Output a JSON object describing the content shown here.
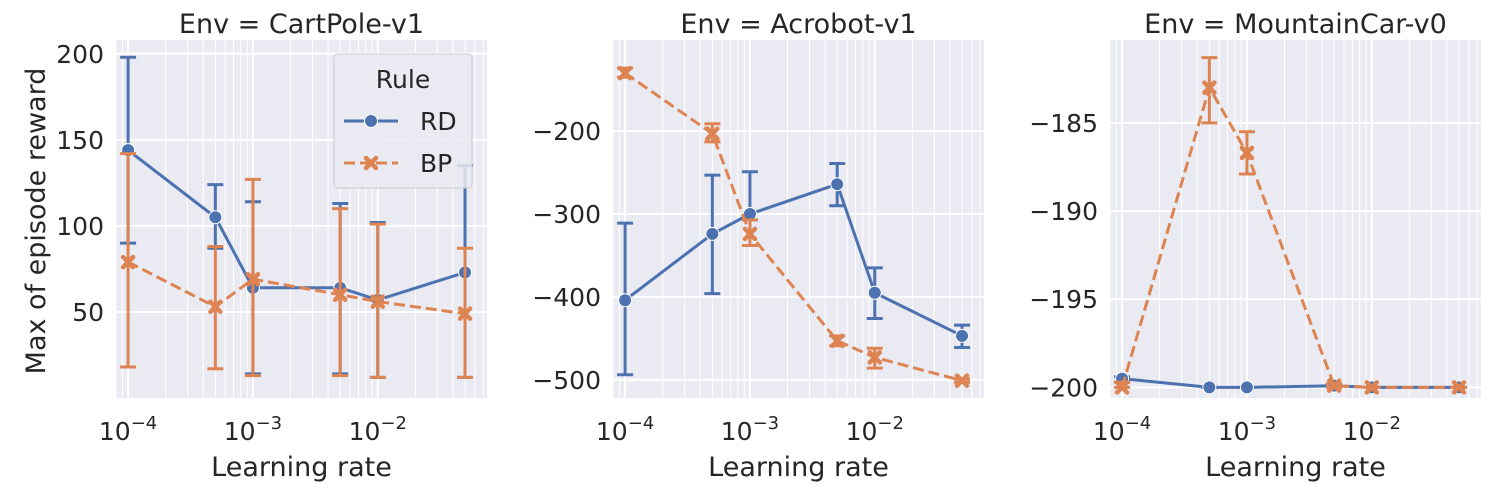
{
  "figure": {
    "ylabel": "Max of episode reward",
    "xlabel": "Learning rate",
    "legend_title": "Rule",
    "legend_placement": "upper right of first panel"
  },
  "chart_data": [
    {
      "type": "line",
      "title": "Env = CartPole-v1",
      "xlabel": "Learning rate",
      "ylabel": "Max of episode reward",
      "xscale": "log",
      "xlim": [
        8e-05,
        0.075
      ],
      "ylim": [
        0,
        208
      ],
      "yticks": [
        50,
        100,
        150,
        200
      ],
      "ytick_labels": [
        "50",
        "100",
        "150",
        "200"
      ],
      "grid": true,
      "legend": {
        "title": "Rule",
        "entries": [
          "RD",
          "BP"
        ],
        "placement": "upper right"
      },
      "series": [
        {
          "name": "RD",
          "color": "#4c72b0",
          "marker": "circle",
          "linestyle": "solid",
          "x": [
            0.0001,
            0.0005,
            0.001,
            0.005,
            0.01,
            0.05
          ],
          "y": [
            144,
            105,
            64,
            64,
            57,
            73
          ],
          "err_low": [
            90,
            87,
            14,
            14,
            12,
            12
          ],
          "err_high": [
            198,
            124,
            114,
            113,
            102,
            135
          ]
        },
        {
          "name": "BP",
          "color": "#dd8452",
          "marker": "x",
          "linestyle": "dashed",
          "x": [
            0.0001,
            0.0005,
            0.001,
            0.005,
            0.01,
            0.05
          ],
          "y": [
            79,
            53,
            69,
            60,
            56,
            49
          ],
          "err_low": [
            18,
            17,
            13,
            13,
            12,
            12
          ],
          "err_high": [
            142,
            88,
            127,
            110,
            101,
            87
          ]
        }
      ]
    },
    {
      "type": "line",
      "title": "Env = Acrobot-v1",
      "xlabel": "Learning rate",
      "xscale": "log",
      "xlim": [
        8e-05,
        0.075
      ],
      "ylim": [
        -522,
        -90
      ],
      "yticks": [
        -500,
        -400,
        -300,
        -200
      ],
      "ytick_labels": [
        "−500",
        "−400",
        "−300",
        "−200"
      ],
      "grid": true,
      "series": [
        {
          "name": "RD",
          "color": "#4c72b0",
          "marker": "circle",
          "linestyle": "solid",
          "x": [
            0.0001,
            0.0005,
            0.001,
            0.005,
            0.01,
            0.05
          ],
          "y": [
            -404,
            -324,
            -300,
            -264,
            -395,
            -447
          ],
          "err_low": [
            -494,
            -396,
            -307,
            -290,
            -426,
            -461
          ],
          "err_high": [
            -311,
            -253,
            -249,
            -239,
            -365,
            -434
          ]
        },
        {
          "name": "BP",
          "color": "#dd8452",
          "marker": "x",
          "linestyle": "dashed",
          "x": [
            0.0001,
            0.0005,
            0.001,
            0.005,
            0.01,
            0.05
          ],
          "y": [
            -130,
            -203,
            -324,
            -453,
            -473,
            -501
          ],
          "err_low": [
            -135,
            -213,
            -338,
            -459,
            -486,
            -503
          ],
          "err_high": [
            -124,
            -191,
            -307,
            -447,
            -462,
            -499
          ]
        }
      ]
    },
    {
      "type": "line",
      "title": "Env = MountainCar-v0",
      "xlabel": "Learning rate",
      "xscale": "log",
      "xlim": [
        8e-05,
        0.075
      ],
      "ylim": [
        -200.6,
        -180.3
      ],
      "yticks": [
        -200,
        -195,
        -190,
        -185
      ],
      "ytick_labels": [
        "−200",
        "−195",
        "−190",
        "−185"
      ],
      "grid": true,
      "series": [
        {
          "name": "RD",
          "color": "#4c72b0",
          "marker": "circle",
          "linestyle": "solid",
          "x": [
            0.0001,
            0.0005,
            0.001,
            0.005,
            0.01,
            0.05
          ],
          "y": [
            -199.5,
            -200,
            -200,
            -199.9,
            -200,
            -200
          ],
          "err_low": [
            -199.7,
            -200,
            -200,
            -200,
            -200,
            -200
          ],
          "err_high": [
            -199.4,
            -200,
            -200,
            -199.8,
            -200,
            -200
          ]
        },
        {
          "name": "BP",
          "color": "#dd8452",
          "marker": "x",
          "linestyle": "dashed",
          "x": [
            0.0001,
            0.0005,
            0.001,
            0.005,
            0.01,
            0.05
          ],
          "y": [
            -200,
            -183,
            -186.7,
            -199.9,
            -200,
            -200
          ],
          "err_low": [
            -200,
            -185,
            -187.9,
            -200,
            -200,
            -200
          ],
          "err_high": [
            -199.7,
            -181.3,
            -185.5,
            -199.8,
            -200,
            -200
          ]
        }
      ]
    }
  ]
}
